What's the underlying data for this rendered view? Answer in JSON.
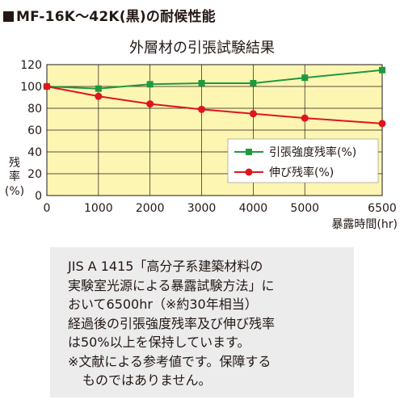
{
  "header": {
    "title": "MF-16K～42K(黒)の耐候性能"
  },
  "chart_data": {
    "type": "line",
    "title": "外層材の引張試験結果",
    "xlabel": "暴露時間(hr)",
    "ylabel_lines": [
      "残",
      "率",
      "(%)"
    ],
    "x": [
      0,
      1000,
      2000,
      3000,
      4000,
      5000,
      6500
    ],
    "x_tick_labels": [
      "0",
      "1000",
      "2000",
      "3000",
      "4000",
      "5000",
      "6500"
    ],
    "ylim": [
      0,
      120
    ],
    "y_ticks": [
      0,
      20,
      40,
      60,
      80,
      100,
      120
    ],
    "grid": true,
    "legend_position": "bottom-right",
    "series": [
      {
        "name": "引張強度残率(%)",
        "marker": "square",
        "color": "#1e9a3c",
        "values": [
          100,
          98,
          102,
          103,
          103,
          108,
          115
        ]
      },
      {
        "name": "伸び残率(%)",
        "marker": "circle",
        "color": "#e0141e",
        "values": [
          100,
          91,
          84,
          79,
          75,
          71,
          66
        ]
      }
    ]
  },
  "note": {
    "lines": [
      "JIS A 1415「高分子系建築材料の",
      "実験室光源による暴露試験方法」に",
      "おいて6500hr（※約30年相当）",
      "経過後の引張強度残率及び伸び残率",
      "は50%以上を保持しています。",
      "※文献による参考値です。保障する",
      "ものではありません。"
    ]
  }
}
